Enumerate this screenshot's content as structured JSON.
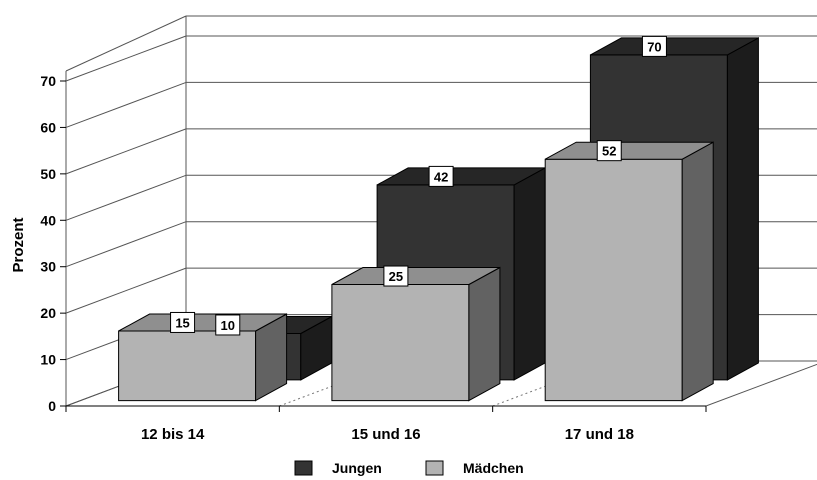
{
  "chart_data": {
    "type": "bar",
    "categories": [
      "12 bis 14",
      "15 und 16",
      "17 und 18"
    ],
    "series": [
      {
        "name": "Jungen",
        "values": [
          10,
          42,
          70
        ],
        "color": "#333333"
      },
      {
        "name": "Mädchen",
        "values": [
          15,
          25,
          52
        ],
        "color": "#b3b3b3"
      }
    ],
    "ylabel": "Prozent",
    "ylim": [
      0,
      70
    ],
    "yticks": [
      "0",
      "10",
      "20",
      "30",
      "40",
      "50",
      "60",
      "70"
    ],
    "grid": true,
    "legend": "bottom",
    "style": "3d"
  }
}
